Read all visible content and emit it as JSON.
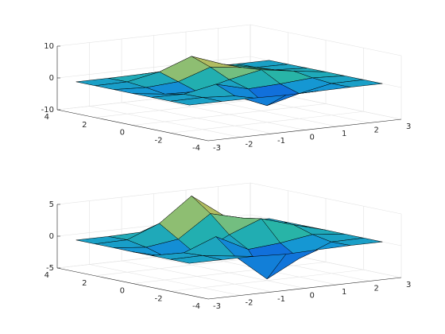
{
  "chart_data": [
    {
      "type": "surface",
      "x": [
        -3,
        -2,
        -1,
        0,
        1,
        2,
        3
      ],
      "y": [
        -3,
        -2,
        -1,
        0,
        1,
        2,
        3
      ],
      "z": [
        [
          0,
          0,
          -0.03,
          -0.25,
          -0.11,
          0,
          0
        ],
        [
          0,
          0.05,
          -0.6,
          -4.76,
          -2.1,
          -0.06,
          0
        ],
        [
          0,
          -0.13,
          1.85,
          -0.72,
          -0.27,
          0.5,
          0.01
        ],
        [
          -0.03,
          -1.33,
          -1.65,
          0.98,
          2.94,
          1.41,
          0.03
        ],
        [
          0,
          -0.48,
          0.23,
          3.69,
          2.43,
          0.58,
          0.01
        ],
        [
          0,
          0.08,
          2.1,
          5.86,
          2.21,
          0.13,
          0
        ],
        [
          0,
          0,
          0.11,
          0.3,
          0.11,
          0,
          0
        ]
      ],
      "xlim": [
        -3,
        3
      ],
      "ylim": [
        -4,
        4
      ],
      "zlim": [
        -10,
        10
      ],
      "xticks": [
        -3,
        -2,
        -1,
        0,
        1,
        2,
        3
      ],
      "yticks": [
        -4,
        -2,
        0,
        2,
        4
      ],
      "zticks": [
        -10,
        0,
        10
      ],
      "grid": true
    },
    {
      "type": "surface",
      "x": [
        -3,
        -2,
        -1,
        0,
        1,
        2,
        3
      ],
      "y": [
        -3,
        -2,
        -1,
        0,
        1,
        2,
        3
      ],
      "z": [
        [
          0,
          0,
          -0.03,
          -0.25,
          -0.11,
          0,
          0
        ],
        [
          0,
          0.05,
          -0.6,
          -4.76,
          -2.1,
          -0.06,
          0
        ],
        [
          0,
          -0.13,
          1.85,
          -0.72,
          -0.27,
          0.5,
          0.01
        ],
        [
          -0.03,
          -1.33,
          -1.65,
          0.98,
          2.94,
          1.41,
          0.03
        ],
        [
          0,
          -0.48,
          0.23,
          3.69,
          2.43,
          0.58,
          0.01
        ],
        [
          0,
          0.08,
          2.1,
          5.86,
          2.21,
          0.13,
          0
        ],
        [
          0,
          0,
          0.11,
          0.3,
          0.11,
          0,
          0
        ]
      ],
      "xlim": [
        -3,
        3
      ],
      "ylim": [
        -4,
        4
      ],
      "zlim": [
        -5,
        5
      ],
      "xticks": [
        -3,
        -2,
        -1,
        0,
        1,
        2,
        3
      ],
      "yticks": [
        -4,
        -2,
        0,
        2,
        4
      ],
      "zticks": [
        -5,
        0,
        5
      ],
      "grid": true
    }
  ]
}
